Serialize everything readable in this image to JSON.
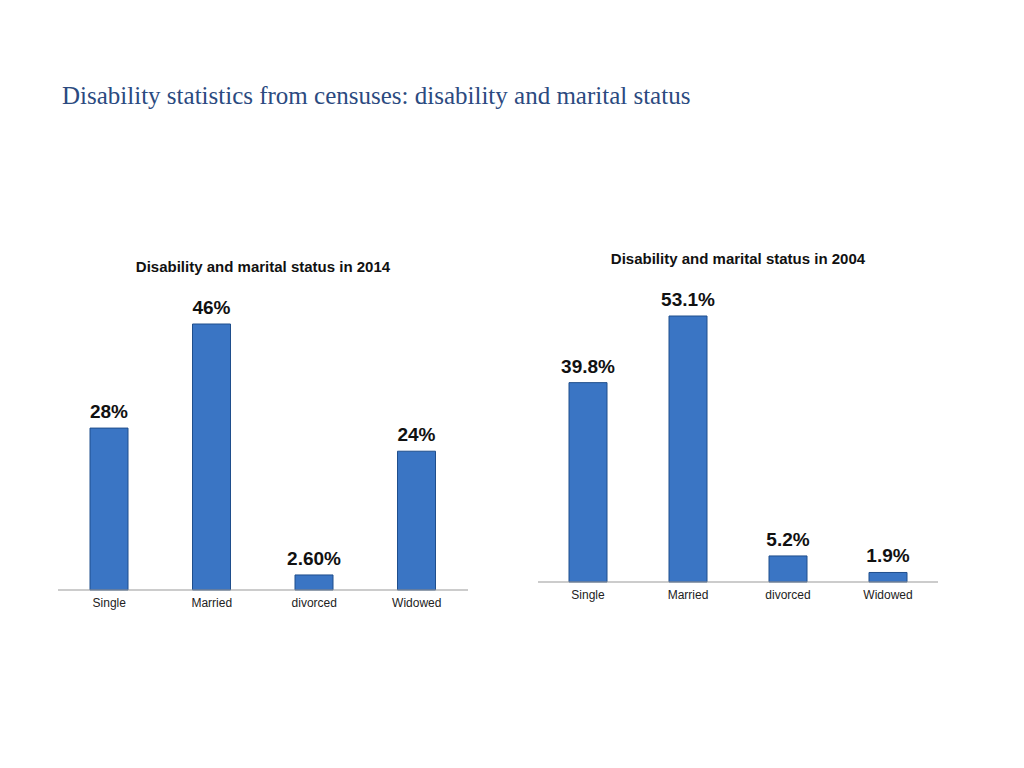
{
  "title": "Disability statistics from censuses: disability and marital status",
  "chart_data": [
    {
      "type": "bar",
      "title": "Disability and marital status in 2014",
      "categories": [
        "Single",
        "Married",
        "divorced",
        "Widowed"
      ],
      "values": [
        28,
        46,
        2.6,
        24
      ],
      "value_labels": [
        "28%",
        "46%",
        "2.60%",
        "24%"
      ],
      "color": "#3a75c4",
      "data_labels": true,
      "tick_labels": "x",
      "grid": false
    },
    {
      "type": "bar",
      "title": "Disability and marital status in 2004",
      "categories": [
        "Single",
        "Married",
        "divorced",
        "Widowed"
      ],
      "values": [
        39.8,
        53.1,
        5.2,
        1.9
      ],
      "value_labels": [
        "39.8%",
        "53.1%",
        "5.2%",
        "1.9%"
      ],
      "color": "#3a75c4",
      "data_labels": true,
      "tick_labels": "x",
      "grid": false
    }
  ]
}
